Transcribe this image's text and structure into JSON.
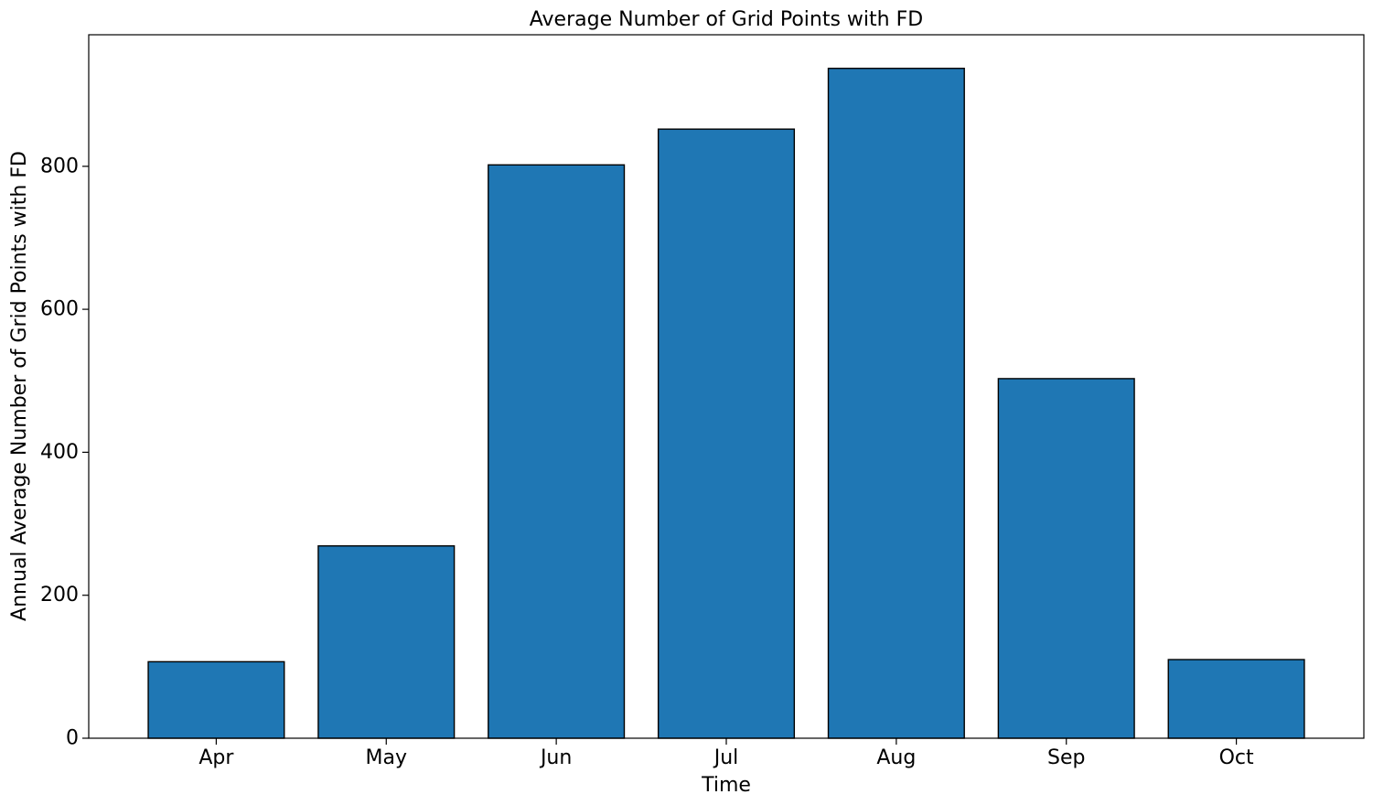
{
  "chart_data": {
    "type": "bar",
    "title": "Average Number of Grid Points with FD",
    "xlabel": "Time",
    "ylabel": "Annual Average Number of Grid Points with FD",
    "categories": [
      "Apr",
      "May",
      "Jun",
      "Jul",
      "Aug",
      "Sep",
      "Oct"
    ],
    "values": [
      107,
      269,
      802,
      852,
      937,
      503,
      110
    ],
    "ylim": [
      0,
      984
    ],
    "yticks": [
      0,
      200,
      400,
      600,
      800
    ],
    "ytick_labels": [
      "0",
      "200",
      "400",
      "600",
      "800"
    ],
    "bar_color": "#1f77b4",
    "bar_edge_color": "#000000",
    "grid": false,
    "legend": "none"
  }
}
